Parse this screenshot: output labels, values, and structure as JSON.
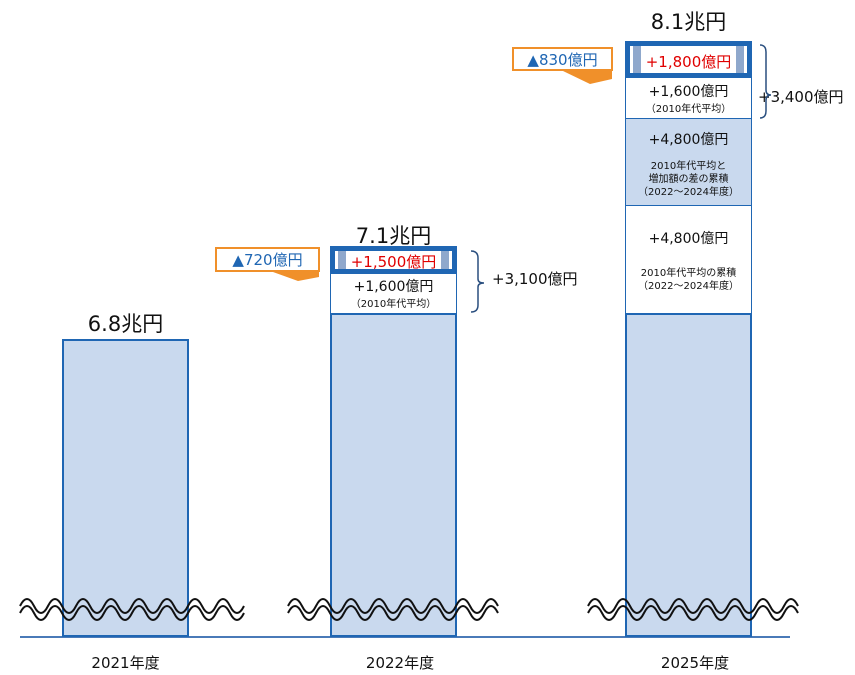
{
  "chart_data": {
    "type": "bar",
    "categories": [
      "2021年度",
      "2022年度",
      "2025年度"
    ],
    "totals": [
      "6.8兆円",
      "7.1兆円",
      "8.1兆円"
    ],
    "total_values": [
      6.8,
      7.1,
      8.1
    ],
    "axis_break": true,
    "colors": {
      "bar_fill": "#c9d9ee",
      "bar_border": "#1f66b3",
      "increase_text": "#e00000",
      "reduction_text": "#1f66b3",
      "reduction_border": "#f0902a"
    },
    "fy2022": {
      "top_increase": "+1,500億円",
      "avg_increase": "+1,600億円",
      "avg_note": "（2010年代平均）",
      "reduction": "▲720億円",
      "bracket_total": "+3,100億円"
    },
    "fy2025": {
      "top_increase": "+1,800億円",
      "avg_increase": "+1,600億円",
      "avg_note": "（2010年代平均）",
      "reduction": "▲830億円",
      "bracket_total": "+3,400億円",
      "gap_increase": "+4,800億円",
      "gap_note_1": "2010年代平均と",
      "gap_note_2": "増加額の差の累積",
      "gap_note_3": "（2022～2024年度）",
      "avg_cum_increase": "+4,800億円",
      "avg_cum_note_1": "2010年代平均の累積",
      "avg_cum_note_2": "（2022～2024年度）"
    }
  }
}
